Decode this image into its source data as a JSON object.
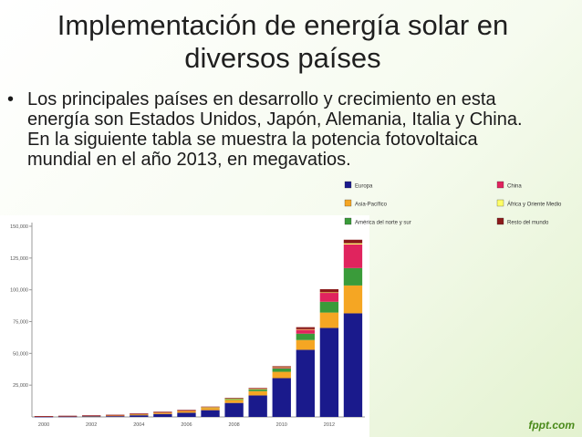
{
  "slide": {
    "title": "Implementación de energía solar en diversos países",
    "bullet": "Los principales países en desarrollo y crecimiento en esta energía son Estados Unidos, Japón, Alemania, Italia y China. En la siguiente tabla se muestra la potencia fotovoltaica mundial en el año 2013, en megavatios.",
    "logo_text": "fppt.com"
  },
  "chart_data": {
    "type": "bar",
    "stacked": true,
    "categories": [
      "2000",
      "2001",
      "2002",
      "2003",
      "2004",
      "2005",
      "2006",
      "2007",
      "2008",
      "2009",
      "2010",
      "2011",
      "2012",
      "2013"
    ],
    "x_tick_labels": [
      "2000",
      "2002",
      "2004",
      "2006",
      "2008",
      "2010",
      "2012"
    ],
    "y_ticks": [
      25000,
      50000,
      75000,
      100000,
      125000,
      150000
    ],
    "y_tick_labels": [
      "25,000",
      "50,000",
      "75,000",
      "100,000",
      "125,000",
      "150,000"
    ],
    "ylim": [
      0,
      150000
    ],
    "grid": false,
    "legend_position": "top-right",
    "series": [
      {
        "name": "Europa",
        "color": "#1a1a8c",
        "values": [
          150,
          260,
          400,
          600,
          1300,
          2300,
          3300,
          5300,
          11000,
          16900,
          30500,
          52800,
          70000,
          81500
        ]
      },
      {
        "name": "Asia-Pacífico",
        "color": "#f5a623",
        "values": [
          370,
          460,
          600,
          750,
          950,
          1200,
          1500,
          1800,
          2400,
          3400,
          5000,
          7700,
          12100,
          21900
        ]
      },
      {
        "name": "América del norte y sur",
        "color": "#3a9b3a",
        "values": [
          20,
          30,
          60,
          100,
          150,
          200,
          300,
          500,
          900,
          1500,
          2700,
          5000,
          8500,
          13700
        ]
      },
      {
        "name": "China",
        "color": "#e0245e",
        "values": [
          20,
          25,
          40,
          50,
          60,
          70,
          80,
          100,
          150,
          300,
          800,
          3300,
          7000,
          18600
        ]
      },
      {
        "name": "África y Oriente Medio",
        "color": "#ffff66",
        "values": [
          0,
          0,
          0,
          0,
          0,
          0,
          0,
          10,
          20,
          40,
          80,
          200,
          400,
          900
        ]
      },
      {
        "name": "Resto del mundo",
        "color": "#8b1a1a",
        "values": [
          100,
          120,
          150,
          200,
          250,
          300,
          350,
          400,
          500,
          600,
          800,
          1600,
          2500,
          2800
        ]
      }
    ]
  }
}
